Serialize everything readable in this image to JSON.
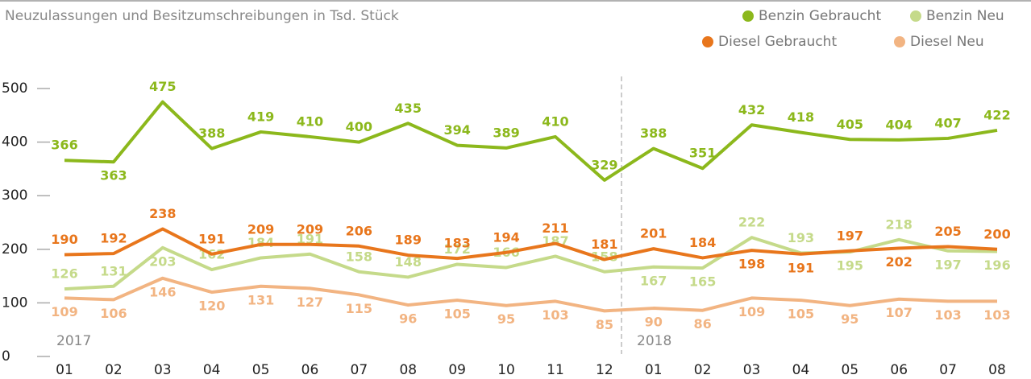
{
  "chart_data": {
    "type": "line",
    "title": "Neuzulassungen und Besitzumschreibungen in Tsd. Stück",
    "categories": [
      "01",
      "02",
      "03",
      "04",
      "05",
      "06",
      "07",
      "08",
      "09",
      "10",
      "11",
      "12",
      "01",
      "02",
      "03",
      "04",
      "05",
      "06",
      "07",
      "08"
    ],
    "annotations": [
      "2017",
      "2018"
    ],
    "series": [
      {
        "name": "Benzin Gebraucht",
        "color": "#8cb81c",
        "values": [
          366,
          363,
          475,
          388,
          419,
          410,
          400,
          435,
          394,
          389,
          410,
          329,
          388,
          351,
          432,
          418,
          405,
          404,
          407,
          422
        ]
      },
      {
        "name": "Benzin Neu",
        "color": "#c5da8a",
        "values": [
          126,
          131,
          203,
          162,
          184,
          191,
          158,
          148,
          172,
          166,
          187,
          158,
          167,
          165,
          222,
          193,
          195,
          218,
          197,
          196
        ]
      },
      {
        "name": "Diesel Gebraucht",
        "color": "#e8761c",
        "values": [
          190,
          192,
          238,
          191,
          209,
          209,
          206,
          189,
          183,
          194,
          211,
          181,
          201,
          184,
          198,
          191,
          197,
          202,
          205,
          200
        ]
      },
      {
        "name": "Diesel Neu",
        "color": "#f2b482",
        "values": [
          109,
          106,
          146,
          120,
          131,
          127,
          115,
          96,
          105,
          95,
          103,
          85,
          90,
          86,
          109,
          105,
          95,
          107,
          103,
          103
        ]
      }
    ],
    "ylim": [
      0,
      500
    ],
    "yticks": [
      0,
      100,
      200,
      300,
      400,
      500
    ]
  }
}
